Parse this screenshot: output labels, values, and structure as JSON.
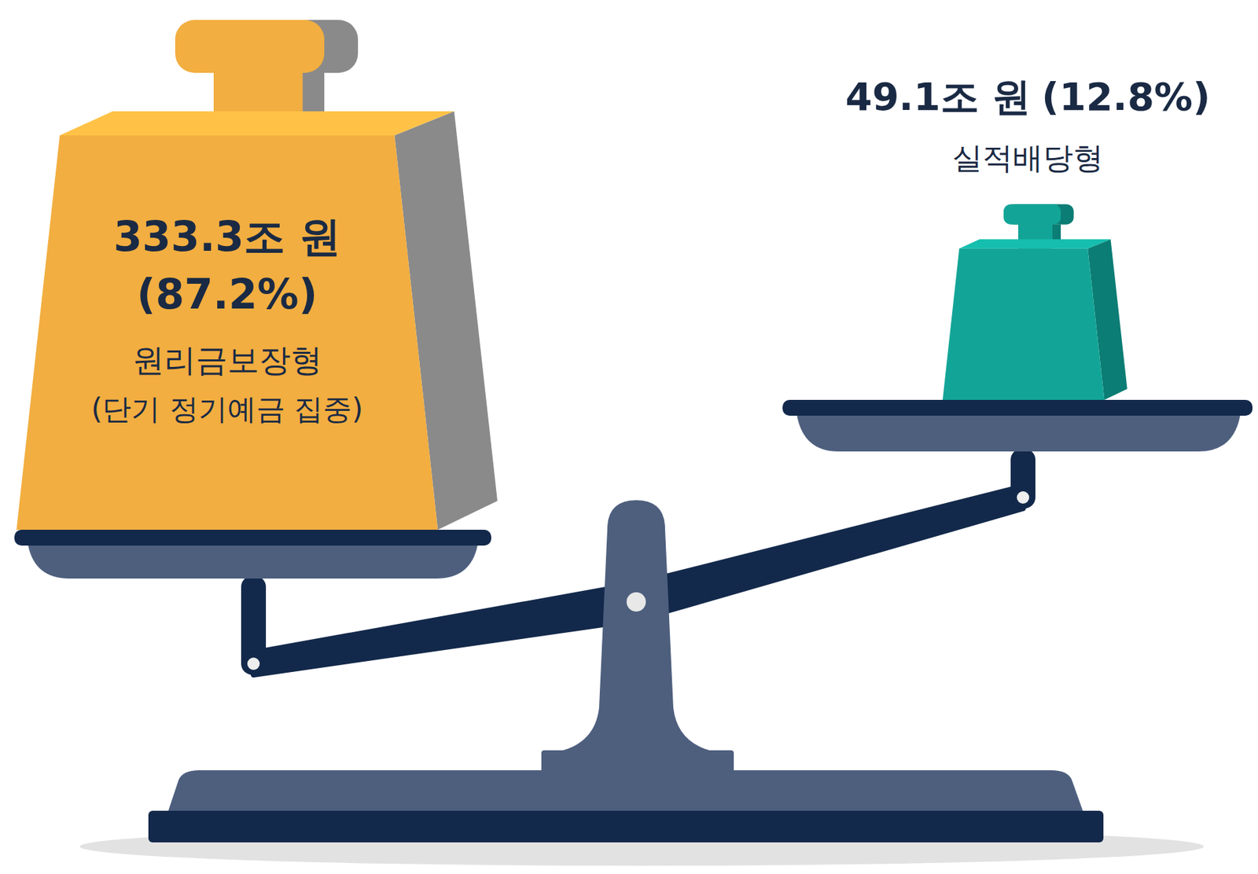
{
  "chart_data": {
    "type": "balance",
    "categories": [
      "원리금보장형",
      "실적배당형"
    ],
    "values": [
      333.3,
      49.1
    ],
    "value_labels": [
      "333.3조 원",
      "49.1조 원"
    ],
    "shares": [
      87.2,
      12.8
    ],
    "share_labels": [
      "(87.2%)",
      "(12.8%)"
    ],
    "category_notes": [
      "(단기 정기예금 집중)",
      null
    ],
    "colors": [
      "#f2ae40",
      "#12a597"
    ]
  }
}
